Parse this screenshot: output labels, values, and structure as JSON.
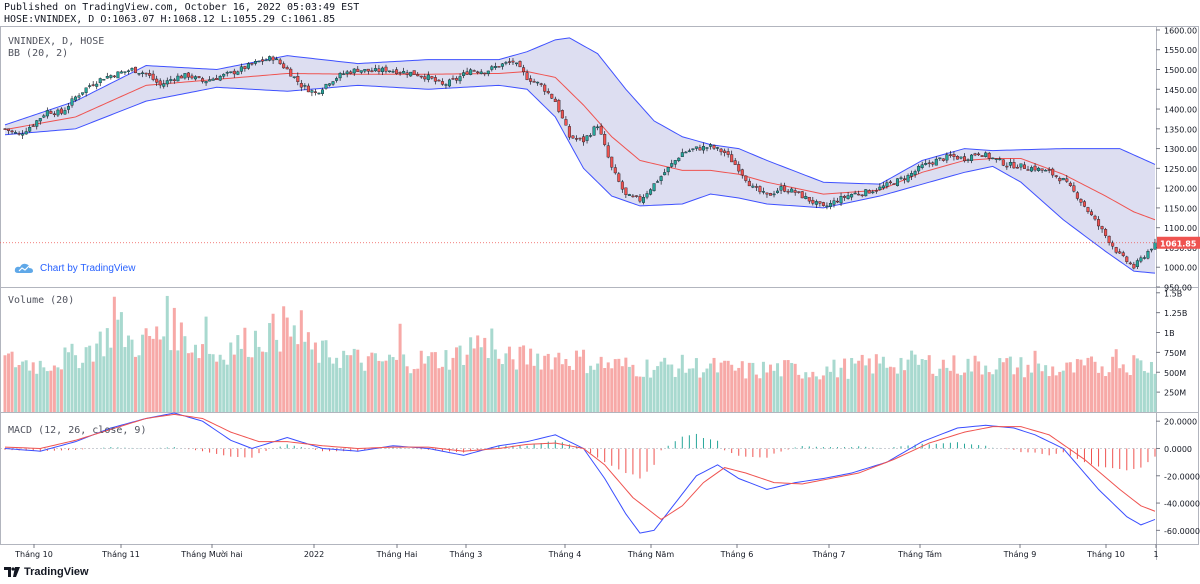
{
  "header": {
    "published": "Published on TradingView.com, October 16, 2022 05:03:49 EST",
    "ohlc": "HOSE:VNINDEX, D O:1063.07 H:1068.12 L:1055.29 C:1061.85"
  },
  "labels": {
    "symbol": "VNINDEX, D, HOSE",
    "bb": "BB (20, 2)",
    "volume": "Volume (20)",
    "macd": "MACD (12, 26, close, 9)",
    "credit": "Chart by TradingView",
    "footer": "TradingView"
  },
  "colors": {
    "up": "#26a69a",
    "down": "#ef5350",
    "band": "#3f51ff",
    "band_fill": "#d7d8ee",
    "basis": "#ef5350",
    "macd": "#3a4eff",
    "signal": "#ef5350",
    "price_line": "#ef5350"
  },
  "chart_data": [
    {
      "type": "candlestick",
      "title": "VNINDEX, D, HOSE",
      "last_price": 1061.85,
      "last_price_label": "1061.85",
      "ylim": [
        950,
        1610
      ],
      "y_ticks": [
        "1600.00",
        "1550.00",
        "1500.00",
        "1450.00",
        "1400.00",
        "1350.00",
        "1300.00",
        "1250.00",
        "1200.00",
        "1150.00",
        "1100.00",
        "1050.00",
        "1000.00",
        "950.00"
      ],
      "x_ticks": [
        "Tháng 10",
        "Tháng 11",
        "Tháng Mười hai",
        "2022",
        "Tháng Hai",
        "Tháng 3",
        "Tháng 4",
        "Tháng Năm",
        "Tháng 6",
        "Tháng 7",
        "Tháng Tám",
        "Tháng 9",
        "Tháng 10",
        "1"
      ],
      "close_path": [
        [
          0,
          1350
        ],
        [
          4,
          1335
        ],
        [
          8,
          1362
        ],
        [
          12,
          1395
        ],
        [
          16,
          1390
        ],
        [
          20,
          1430
        ],
        [
          24,
          1460
        ],
        [
          28,
          1480
        ],
        [
          32,
          1490
        ],
        [
          36,
          1500
        ],
        [
          40,
          1490
        ],
        [
          44,
          1460
        ],
        [
          48,
          1480
        ],
        [
          52,
          1485
        ],
        [
          56,
          1470
        ],
        [
          60,
          1480
        ],
        [
          64,
          1490
        ],
        [
          68,
          1505
        ],
        [
          72,
          1520
        ],
        [
          76,
          1530
        ],
        [
          80,
          1500
        ],
        [
          84,
          1460
        ],
        [
          88,
          1440
        ],
        [
          92,
          1470
        ],
        [
          96,
          1490
        ],
        [
          100,
          1500
        ],
        [
          104,
          1495
        ],
        [
          108,
          1500
        ],
        [
          112,
          1495
        ],
        [
          116,
          1490
        ],
        [
          120,
          1480
        ],
        [
          124,
          1460
        ],
        [
          128,
          1475
        ],
        [
          132,
          1500
        ],
        [
          136,
          1495
        ],
        [
          140,
          1510
        ],
        [
          144,
          1520
        ],
        [
          148,
          1480
        ],
        [
          152,
          1460
        ],
        [
          156,
          1420
        ],
        [
          160,
          1330
        ],
        [
          164,
          1320
        ],
        [
          168,
          1360
        ],
        [
          172,
          1250
        ],
        [
          176,
          1180
        ],
        [
          180,
          1170
        ],
        [
          184,
          1210
        ],
        [
          188,
          1250
        ],
        [
          192,
          1290
        ],
        [
          196,
          1300
        ],
        [
          200,
          1305
        ],
        [
          204,
          1290
        ],
        [
          208,
          1250
        ],
        [
          212,
          1200
        ],
        [
          216,
          1180
        ],
        [
          220,
          1200
        ],
        [
          224,
          1190
        ],
        [
          228,
          1170
        ],
        [
          232,
          1150
        ],
        [
          236,
          1170
        ],
        [
          240,
          1185
        ],
        [
          244,
          1190
        ],
        [
          248,
          1200
        ],
        [
          252,
          1215
        ],
        [
          256,
          1230
        ],
        [
          260,
          1255
        ],
        [
          264,
          1270
        ],
        [
          268,
          1280
        ],
        [
          272,
          1275
        ],
        [
          276,
          1290
        ],
        [
          280,
          1275
        ],
        [
          284,
          1260
        ],
        [
          288,
          1255
        ],
        [
          292,
          1250
        ],
        [
          296,
          1240
        ],
        [
          300,
          1220
        ],
        [
          304,
          1180
        ],
        [
          308,
          1130
        ],
        [
          312,
          1080
        ],
        [
          316,
          1030
        ],
        [
          320,
          1000
        ],
        [
          324,
          1040
        ],
        [
          326,
          1061.85
        ]
      ],
      "bb_upper_path": [
        [
          0,
          1360
        ],
        [
          20,
          1420
        ],
        [
          40,
          1510
        ],
        [
          60,
          1500
        ],
        [
          80,
          1535
        ],
        [
          100,
          1515
        ],
        [
          120,
          1525
        ],
        [
          140,
          1525
        ],
        [
          148,
          1545
        ],
        [
          156,
          1575
        ],
        [
          160,
          1580
        ],
        [
          168,
          1540
        ],
        [
          176,
          1450
        ],
        [
          184,
          1370
        ],
        [
          192,
          1330
        ],
        [
          200,
          1310
        ],
        [
          208,
          1300
        ],
        [
          216,
          1270
        ],
        [
          232,
          1215
        ],
        [
          248,
          1210
        ],
        [
          260,
          1270
        ],
        [
          272,
          1300
        ],
        [
          280,
          1295
        ],
        [
          300,
          1300
        ],
        [
          316,
          1300
        ],
        [
          326,
          1260
        ]
      ],
      "bb_lower_path": [
        [
          0,
          1335
        ],
        [
          20,
          1350
        ],
        [
          40,
          1420
        ],
        [
          60,
          1455
        ],
        [
          80,
          1445
        ],
        [
          100,
          1460
        ],
        [
          120,
          1450
        ],
        [
          140,
          1460
        ],
        [
          148,
          1450
        ],
        [
          156,
          1380
        ],
        [
          164,
          1250
        ],
        [
          172,
          1180
        ],
        [
          180,
          1155
        ],
        [
          192,
          1160
        ],
        [
          200,
          1185
        ],
        [
          208,
          1175
        ],
        [
          216,
          1160
        ],
        [
          232,
          1150
        ],
        [
          248,
          1180
        ],
        [
          260,
          1210
        ],
        [
          272,
          1240
        ],
        [
          280,
          1255
        ],
        [
          288,
          1215
        ],
        [
          300,
          1120
        ],
        [
          312,
          1040
        ],
        [
          320,
          990
        ],
        [
          326,
          985
        ]
      ],
      "bb_basis_path": [
        [
          0,
          1348
        ],
        [
          20,
          1380
        ],
        [
          40,
          1460
        ],
        [
          60,
          1475
        ],
        [
          80,
          1490
        ],
        [
          100,
          1488
        ],
        [
          120,
          1488
        ],
        [
          140,
          1490
        ],
        [
          148,
          1495
        ],
        [
          156,
          1480
        ],
        [
          164,
          1410
        ],
        [
          172,
          1330
        ],
        [
          180,
          1270
        ],
        [
          192,
          1245
        ],
        [
          200,
          1245
        ],
        [
          208,
          1235
        ],
        [
          216,
          1215
        ],
        [
          232,
          1185
        ],
        [
          248,
          1195
        ],
        [
          260,
          1240
        ],
        [
          272,
          1270
        ],
        [
          280,
          1275
        ],
        [
          288,
          1275
        ],
        [
          300,
          1235
        ],
        [
          312,
          1180
        ],
        [
          320,
          1140
        ],
        [
          326,
          1120
        ]
      ]
    },
    {
      "type": "bar",
      "title": "Volume (20)",
      "unit_label": "volume",
      "ylim": [
        0,
        1560000000
      ],
      "y_ticks": [
        "1.5B",
        "1.25B",
        "1B",
        "750M",
        "500M",
        "250M"
      ],
      "level_path": [
        [
          0,
          650
        ],
        [
          10,
          600
        ],
        [
          20,
          700
        ],
        [
          28,
          900
        ],
        [
          32,
          1100
        ],
        [
          36,
          850
        ],
        [
          44,
          950
        ],
        [
          48,
          1050
        ],
        [
          52,
          900
        ],
        [
          56,
          800
        ],
        [
          60,
          700
        ],
        [
          64,
          820
        ],
        [
          70,
          900
        ],
        [
          76,
          1000
        ],
        [
          82,
          950
        ],
        [
          88,
          750
        ],
        [
          96,
          700
        ],
        [
          104,
          620
        ],
        [
          112,
          650
        ],
        [
          120,
          650
        ],
        [
          128,
          700
        ],
        [
          134,
          900
        ],
        [
          140,
          650
        ],
        [
          150,
          700
        ],
        [
          160,
          680
        ],
        [
          170,
          600
        ],
        [
          180,
          560
        ],
        [
          190,
          580
        ],
        [
          200,
          560
        ],
        [
          210,
          520
        ],
        [
          220,
          540
        ],
        [
          230,
          520
        ],
        [
          240,
          560
        ],
        [
          250,
          620
        ],
        [
          260,
          620
        ],
        [
          270,
          580
        ],
        [
          280,
          600
        ],
        [
          290,
          560
        ],
        [
          300,
          520
        ],
        [
          310,
          580
        ],
        [
          320,
          620
        ],
        [
          326,
          560
        ]
      ],
      "spikes": [
        [
          31,
          1450
        ],
        [
          46,
          1460
        ],
        [
          57,
          1200
        ],
        [
          79,
          1330
        ],
        [
          84,
          1280
        ],
        [
          112,
          1110
        ],
        [
          138,
          1050
        ],
        [
          292,
          770
        ],
        [
          315,
          790
        ]
      ]
    },
    {
      "type": "line",
      "title": "MACD (12, 26, close, 9)",
      "ylim": [
        -70,
        26
      ],
      "y_ticks": [
        "20.0000",
        "0.0000",
        "-20.0000",
        "-40.0000",
        "-60.0000"
      ],
      "macd_path": [
        [
          0,
          0
        ],
        [
          10,
          -2
        ],
        [
          20,
          5
        ],
        [
          30,
          15
        ],
        [
          40,
          22
        ],
        [
          48,
          26
        ],
        [
          56,
          20
        ],
        [
          64,
          6
        ],
        [
          70,
          0
        ],
        [
          80,
          8
        ],
        [
          90,
          0
        ],
        [
          100,
          -2
        ],
        [
          110,
          2
        ],
        [
          120,
          0
        ],
        [
          130,
          -5
        ],
        [
          140,
          2
        ],
        [
          148,
          5
        ],
        [
          156,
          10
        ],
        [
          164,
          0
        ],
        [
          170,
          -22
        ],
        [
          176,
          -48
        ],
        [
          180,
          -62
        ],
        [
          184,
          -60
        ],
        [
          190,
          -40
        ],
        [
          196,
          -20
        ],
        [
          202,
          -12
        ],
        [
          208,
          -22
        ],
        [
          216,
          -30
        ],
        [
          224,
          -25
        ],
        [
          232,
          -22
        ],
        [
          240,
          -18
        ],
        [
          250,
          -10
        ],
        [
          260,
          5
        ],
        [
          270,
          15
        ],
        [
          278,
          17
        ],
        [
          286,
          15
        ],
        [
          292,
          10
        ],
        [
          300,
          0
        ],
        [
          310,
          -30
        ],
        [
          318,
          -50
        ],
        [
          322,
          -56
        ],
        [
          326,
          -52
        ]
      ],
      "signal_path": [
        [
          0,
          1
        ],
        [
          10,
          0
        ],
        [
          20,
          6
        ],
        [
          30,
          14
        ],
        [
          40,
          22
        ],
        [
          48,
          25
        ],
        [
          56,
          22
        ],
        [
          64,
          12
        ],
        [
          72,
          5
        ],
        [
          80,
          5
        ],
        [
          90,
          2
        ],
        [
          100,
          0
        ],
        [
          110,
          1
        ],
        [
          120,
          1
        ],
        [
          130,
          -2
        ],
        [
          140,
          0
        ],
        [
          148,
          3
        ],
        [
          156,
          4
        ],
        [
          164,
          0
        ],
        [
          170,
          -12
        ],
        [
          178,
          -36
        ],
        [
          186,
          -52
        ],
        [
          192,
          -42
        ],
        [
          198,
          -25
        ],
        [
          204,
          -14
        ],
        [
          210,
          -18
        ],
        [
          218,
          -25
        ],
        [
          226,
          -26
        ],
        [
          234,
          -22
        ],
        [
          242,
          -18
        ],
        [
          252,
          -8
        ],
        [
          262,
          4
        ],
        [
          272,
          12
        ],
        [
          280,
          16
        ],
        [
          288,
          16
        ],
        [
          296,
          10
        ],
        [
          306,
          -8
        ],
        [
          316,
          -30
        ],
        [
          322,
          -42
        ],
        [
          326,
          -46
        ]
      ]
    }
  ]
}
